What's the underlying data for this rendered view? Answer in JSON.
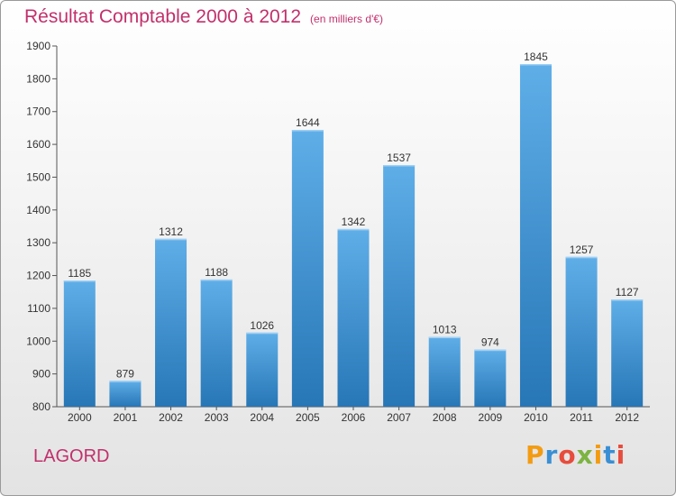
{
  "header": {
    "title": "Résultat Comptable 2000 à 2012",
    "subtitle": "(en milliers d'€)"
  },
  "footer": {
    "commune": "LAGORD",
    "logo_text": "Proxiti"
  },
  "colors": {
    "title": "#c2306b",
    "bar_top": "#5faee8",
    "bar_bottom": "#2776b6",
    "logo": [
      "#f39c12",
      "#3a8fd4",
      "#e74c3c",
      "#7cb342",
      "#f39c12",
      "#3a8fd4",
      "#e74c3c"
    ]
  },
  "chart_data": {
    "type": "bar",
    "categories": [
      "2000",
      "2001",
      "2002",
      "2003",
      "2004",
      "2005",
      "2006",
      "2007",
      "2008",
      "2009",
      "2010",
      "2011",
      "2012"
    ],
    "values": [
      1185,
      879,
      1312,
      1188,
      1026,
      1644,
      1342,
      1537,
      1013,
      974,
      1845,
      1257,
      1127
    ],
    "title": "Résultat Comptable 2000 à 2012",
    "ylabel": "",
    "xlabel": "",
    "ylim": [
      800,
      1900
    ],
    "yticks": [
      800,
      900,
      1000,
      1100,
      1200,
      1300,
      1400,
      1500,
      1600,
      1700,
      1800,
      1900
    ],
    "grid": false,
    "data_labels": true
  }
}
